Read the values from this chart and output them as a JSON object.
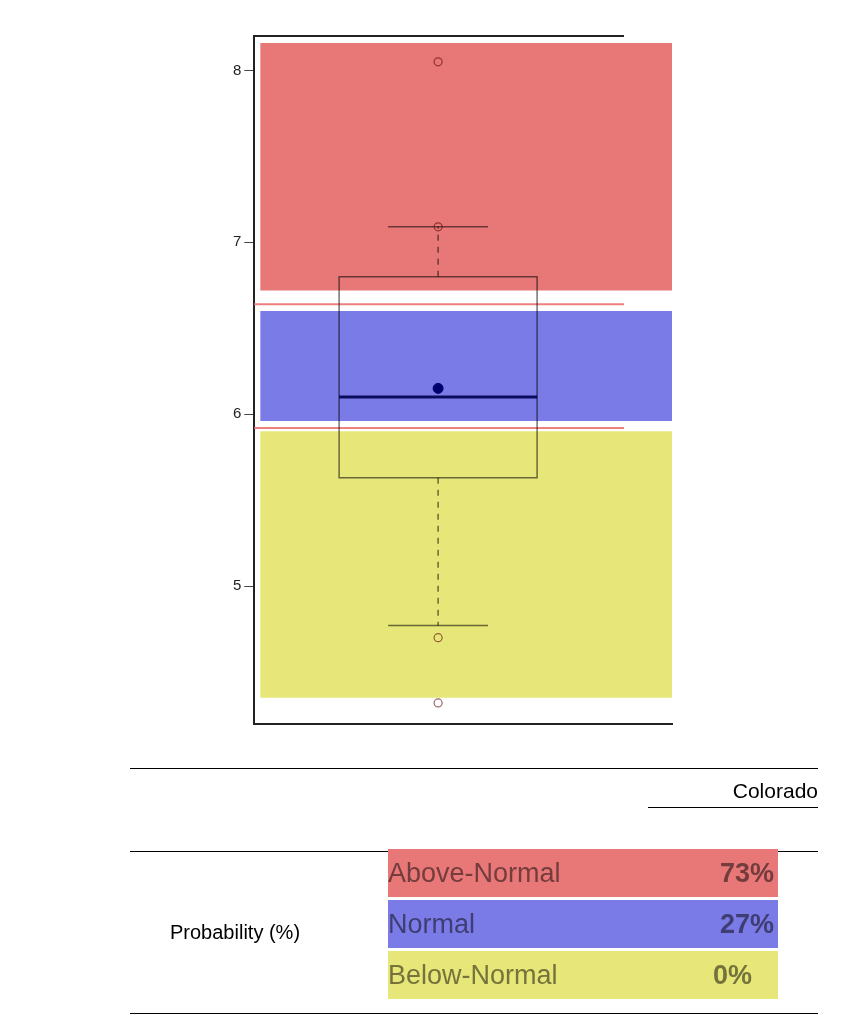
{
  "chart_data": {
    "type": "box",
    "categories": [
      null
    ],
    "boxes": [
      {
        "low": 4.77,
        "q1": 5.63,
        "median": 6.1,
        "q3": 6.8,
        "high": 7.09,
        "mean": 6.15,
        "outliers": [
          8.05,
          7.09,
          4.7,
          4.32
        ]
      }
    ],
    "ylim": [
      4.2,
      8.2
    ],
    "yticks": [
      5,
      6,
      7,
      8
    ],
    "grid": false,
    "legend": false,
    "bands": [
      {
        "axis": "y",
        "from": 6.72,
        "to": 8.16,
        "color": "#e87878"
      },
      {
        "axis": "y",
        "from": 5.96,
        "to": 6.6,
        "color": "#7b7be8"
      },
      {
        "axis": "y",
        "from": 4.35,
        "to": 5.9,
        "color": "#e7e678"
      }
    ],
    "ref_lines": [
      {
        "axis": "y",
        "value": 6.64,
        "color": "#f08080"
      },
      {
        "axis": "y",
        "value": 5.92,
        "color": "#f08080"
      }
    ],
    "annotations": [
      "Colorado",
      "Probability (%)",
      "Above-Normal",
      "73%",
      "Normal",
      "27%",
      "Below-Normal",
      "0%"
    ]
  }
}
